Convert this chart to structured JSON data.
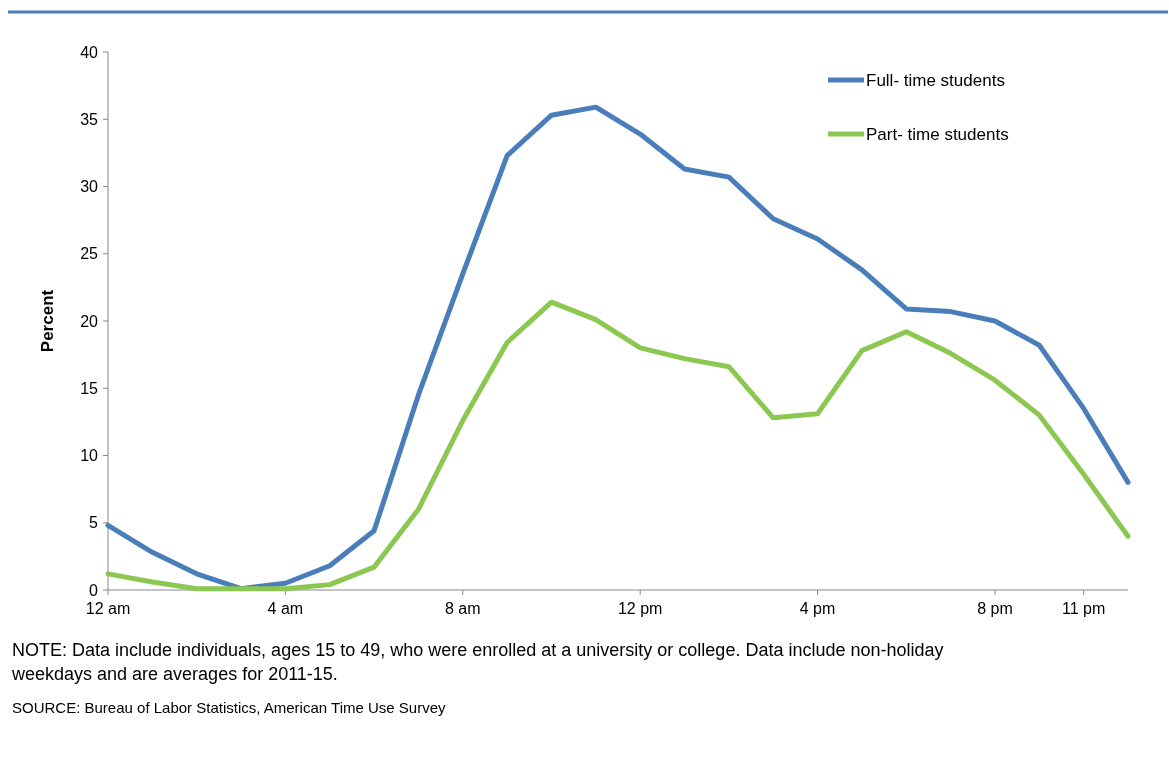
{
  "chart_data": {
    "type": "line",
    "ylabel": "Percent",
    "categories": [
      "12 am",
      null,
      null,
      null,
      "4 am",
      null,
      null,
      null,
      "8 am",
      null,
      null,
      null,
      "12 pm",
      null,
      null,
      null,
      "4 pm",
      null,
      null,
      null,
      "8 pm",
      null,
      "11 pm",
      null
    ],
    "series": [
      {
        "name": "Full- time students",
        "color": "#4a7ebb",
        "values": [
          4.8,
          2.8,
          1.2,
          0.1,
          0.5,
          1.8,
          4.4,
          14.5,
          23.5,
          32.3,
          35.3,
          35.9,
          33.9,
          31.3,
          30.7,
          27.6,
          26.1,
          23.8,
          20.9,
          20.7,
          20.0,
          18.2,
          13.5,
          8.0
        ]
      },
      {
        "name": "Part- time students",
        "color": "#8cc751",
        "values": [
          1.2,
          0.6,
          0.1,
          0.1,
          0.1,
          0.4,
          1.7,
          6.0,
          12.6,
          18.4,
          21.4,
          20.1,
          18.0,
          17.2,
          16.6,
          12.8,
          13.1,
          17.8,
          19.2,
          17.6,
          15.6,
          13.0,
          8.6,
          4.0
        ]
      }
    ],
    "ylim": [
      0,
      40
    ],
    "yticks": [
      0,
      5,
      10,
      15,
      20,
      25,
      30,
      35,
      40
    ],
    "legend": "top right",
    "marker": "none",
    "line_style": "solid",
    "annotations": [
      "NOTE: Data include individuals, ages 15 to 49, who were enrolled at a university or college. Data include non-holiday weekdays and are averages for 2011-15.",
      "SOURCE: Bureau of Labor Statistics, American Time Use Survey"
    ]
  }
}
